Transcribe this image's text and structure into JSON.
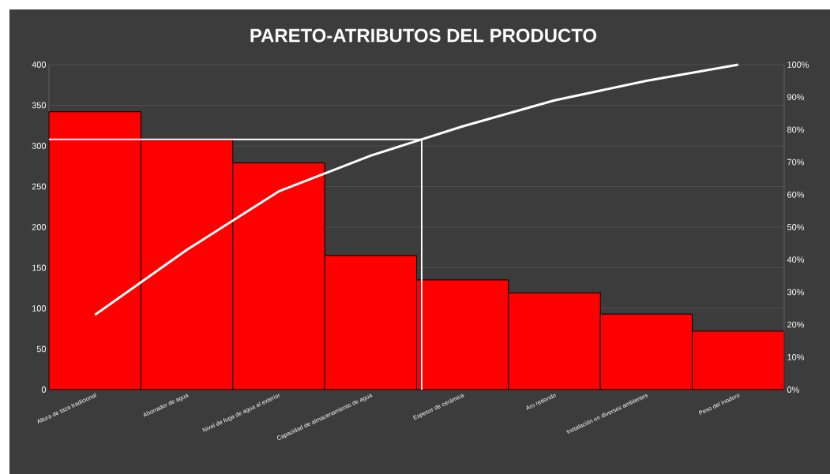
{
  "chart_data": {
    "type": "bar",
    "title": "PARETO-ATRIBUTOS DEL PRODUCTO",
    "categories": [
      "Altura de taza tradicional",
      "Ahorrador de agua",
      "Nivel de fuga de agua al exterior",
      "Capacidad de almacenamiento de agua",
      "Espesor de cerámica",
      "Aro redondo",
      "Instalación en diversos ambientes",
      "Peso del inodoro"
    ],
    "series": [
      {
        "color": "#ff0000",
        "values": [
          342,
          307,
          279,
          165,
          135,
          119,
          93,
          72
        ]
      },
      {
        "type": "line",
        "axis": "y2",
        "color": "#ffffff",
        "values": [
          23,
          43,
          61,
          72,
          81,
          89,
          95,
          100
        ]
      }
    ],
    "ylim": [
      0,
      400
    ],
    "yticks": [
      0,
      50,
      100,
      150,
      200,
      250,
      300,
      350,
      400
    ],
    "y2lim": [
      0,
      100
    ],
    "y2ticks": [
      {
        "value": 0,
        "label": "0%"
      },
      {
        "value": 10,
        "label": "10%"
      },
      {
        "value": 20,
        "label": "20%"
      },
      {
        "value": 30,
        "label": "30%"
      },
      {
        "value": 40,
        "label": "40%"
      },
      {
        "value": 50,
        "label": "50%"
      },
      {
        "value": 60,
        "label": "60%"
      },
      {
        "value": 70,
        "label": "70%"
      },
      {
        "value": 80,
        "label": "80%"
      },
      {
        "value": 90,
        "label": "90%"
      },
      {
        "value": 100,
        "label": "100%"
      }
    ],
    "grid": "y",
    "marker": "none",
    "line_style": "solid",
    "ref_lines": [
      {
        "axis": "y2",
        "value": 77,
        "color": "#ffffff"
      }
    ]
  }
}
